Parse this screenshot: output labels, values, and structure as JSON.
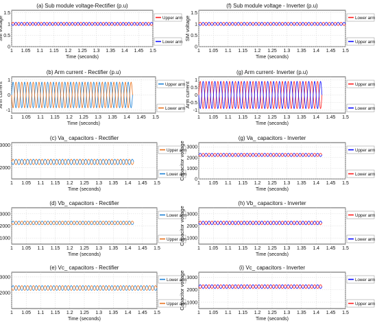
{
  "colors": {
    "blue_right": "#0a0aff",
    "red": "#ff1a1a",
    "orange": "#e8701a",
    "light_blue": "#1a7fd4"
  },
  "chart_data": [
    {
      "type": "line",
      "title": "(a) Sub module voltage-Rectifier (p.u)",
      "xlabel": "Time (seconds)",
      "ylabel": "SM voltage",
      "xlim": [
        1.0,
        1.5
      ],
      "ylim": [
        0,
        1.6
      ],
      "yticks": [
        "0",
        "0.5",
        "1",
        "1.5"
      ],
      "xticks": [
        "1",
        "1.05",
        "1.1",
        "1.15",
        "1.2",
        "1.25",
        "1.3",
        "1.35",
        "1.4",
        "1.45",
        "1.5"
      ],
      "legend": [
        "Upper arm",
        "Lower arm"
      ],
      "legend_placement": "right",
      "series": [
        {
          "name": "Upper arm",
          "color": "#ff1a1a",
          "mean": 1.0,
          "amplitude": 0.07,
          "freq_hz": 50,
          "t_start": 1.0,
          "t_end": 1.5,
          "phase_deg": 0
        },
        {
          "name": "Lower arm",
          "color": "#0a0aff",
          "mean": 1.0,
          "amplitude": 0.07,
          "freq_hz": 50,
          "t_start": 1.0,
          "t_end": 1.5,
          "phase_deg": 180
        }
      ]
    },
    {
      "type": "line",
      "title": "(b) Arm current - Rectifier (p.u)",
      "xlabel": "Time (seconds)",
      "ylabel": "Arm current",
      "xlim": [
        1.0,
        1.5
      ],
      "ylim": [
        -1.2,
        1.2
      ],
      "yticks": [
        "-1",
        "0",
        "1"
      ],
      "xticks": [
        "1",
        "1.05",
        "1.1",
        "1.15",
        "1.2",
        "1.25",
        "1.3",
        "1.35",
        "1.4",
        "1.45",
        "1.5"
      ],
      "legend": [
        "Upper arm",
        "Lower arm"
      ],
      "legend_placement": "right",
      "series": [
        {
          "name": "Upper arm",
          "color": "#1a7fd4",
          "mean": 0,
          "amplitude": 0.85,
          "freq_hz": 50,
          "t_start": 1.0,
          "t_end": 1.42,
          "phase_deg": 0
        },
        {
          "name": "Lower arm",
          "color": "#e8701a",
          "mean": 0,
          "amplitude": 0.85,
          "freq_hz": 50,
          "t_start": 1.0,
          "t_end": 1.42,
          "phase_deg": 180
        }
      ]
    },
    {
      "type": "line",
      "title": "(c) Va_ capacitors - Rectifier",
      "xlabel": "Time (seconds)",
      "ylabel": "Capacitor voltage",
      "xlim": [
        1.0,
        1.5
      ],
      "ylim": [
        1500,
        3100
      ],
      "yticks": [
        "2000",
        "3000"
      ],
      "xticks": [
        "1",
        "1.05",
        "1.1",
        "1.15",
        "1.2",
        "1.25",
        "1.3",
        "1.35",
        "1.4",
        "1.45",
        "1.5"
      ],
      "legend": [
        "Upper arm",
        "Lower arm"
      ],
      "legend_placement": "right",
      "series": [
        {
          "name": "Upper arm",
          "color": "#e8701a",
          "mean": 2250,
          "amplitude": 120,
          "freq_hz": 50,
          "t_start": 1.0,
          "t_end": 1.42,
          "phase_deg": 0
        },
        {
          "name": "Lower arm",
          "color": "#1a7fd4",
          "mean": 2250,
          "amplitude": 120,
          "freq_hz": 50,
          "t_start": 1.0,
          "t_end": 1.42,
          "phase_deg": 180
        }
      ]
    },
    {
      "type": "line",
      "title": "(d) Vb_ capacitors - Rectifier",
      "xlabel": "Time (seconds)",
      "ylabel": "Capacitor voltage",
      "xlim": [
        1.0,
        1.5
      ],
      "ylim": [
        500,
        3500
      ],
      "yticks": [
        "1000",
        "2000",
        "3000"
      ],
      "xticks": [
        "1",
        "1.05",
        "1.1",
        "1.15",
        "1.2",
        "1.25",
        "1.3",
        "1.35",
        "1.4",
        "1.45",
        "1.5"
      ],
      "legend": [
        "Lower arm",
        "Upper arm"
      ],
      "legend_placement": "right",
      "series": [
        {
          "name": "Lower arm",
          "color": "#1a7fd4",
          "mean": 2250,
          "amplitude": 150,
          "freq_hz": 50,
          "t_start": 1.0,
          "t_end": 1.42,
          "phase_deg": 0
        },
        {
          "name": "Upper arm",
          "color": "#e8701a",
          "mean": 2250,
          "amplitude": 150,
          "freq_hz": 50,
          "t_start": 1.0,
          "t_end": 1.42,
          "phase_deg": 180
        }
      ]
    },
    {
      "type": "line",
      "title": "(e) Vc_ capacitors - Rectifier",
      "xlabel": "Time (seconds)",
      "ylabel": "Capacitor voltage",
      "xlim": [
        1.0,
        1.5
      ],
      "ylim": [
        1000,
        3300
      ],
      "yticks": [
        "2000",
        "3000"
      ],
      "xticks": [
        "1",
        "1.05",
        "1.1",
        "1.15",
        "1.2",
        "1.25",
        "1.3",
        "1.35",
        "1.4",
        "1.45",
        "1.5"
      ],
      "legend": [
        "Lower arm",
        "Upper arm"
      ],
      "legend_placement": "right",
      "series": [
        {
          "name": "Lower arm",
          "color": "#1a7fd4",
          "mean": 2300,
          "amplitude": 150,
          "freq_hz": 50,
          "t_start": 1.0,
          "t_end": 1.5,
          "phase_deg": 0
        },
        {
          "name": "Upper arm",
          "color": "#e8701a",
          "mean": 2300,
          "amplitude": 150,
          "freq_hz": 50,
          "t_start": 1.0,
          "t_end": 1.5,
          "phase_deg": 180
        }
      ]
    },
    {
      "type": "line",
      "title": "(f) Sub module voltage - Inverter (p.u)",
      "xlabel": "Time (seconds)",
      "ylabel": "SM voltage",
      "xlim": [
        1.0,
        1.5
      ],
      "ylim": [
        0,
        1.6
      ],
      "yticks": [
        "0",
        "0.5",
        "1",
        "1.5"
      ],
      "xticks": [
        "1",
        "1.05",
        "1.1",
        "1.15",
        "1.2",
        "1.25",
        "1.3",
        "1.35",
        "1.4",
        "1.45",
        "1.5"
      ],
      "legend": [
        "Lower arm",
        "Upper arm"
      ],
      "legend_placement": "right",
      "series": [
        {
          "name": "Lower arm",
          "color": "#ff1a1a",
          "mean": 1.0,
          "amplitude": 0.07,
          "freq_hz": 50,
          "t_start": 1.0,
          "t_end": 1.5,
          "phase_deg": 0
        },
        {
          "name": "Upper arm",
          "color": "#0a0aff",
          "mean": 1.0,
          "amplitude": 0.07,
          "freq_hz": 50,
          "t_start": 1.0,
          "t_end": 1.5,
          "phase_deg": 180
        }
      ]
    },
    {
      "type": "line",
      "title": "(g) Arm current- Inverter (p.u)",
      "xlabel": "Time (seconds)",
      "ylabel": "Arm current",
      "xlim": [
        1.0,
        1.5
      ],
      "ylim": [
        -1.2,
        1.2
      ],
      "yticks": [
        "-1",
        "-0.5",
        "0",
        "0.5",
        "1"
      ],
      "xticks": [
        "1",
        "1.05",
        "1.1",
        "1.15",
        "1.2",
        "1.25",
        "1.3",
        "1.35",
        "1.4",
        "1.45",
        "1.5"
      ],
      "legend": [
        "Upper arm",
        "Lower arm"
      ],
      "legend_placement": "right",
      "series": [
        {
          "name": "Upper arm",
          "color": "#ff1a1a",
          "mean": 0,
          "amplitude": 0.9,
          "freq_hz": 50,
          "t_start": 1.0,
          "t_end": 1.42,
          "phase_deg": 0
        },
        {
          "name": "Lower arm",
          "color": "#0a0aff",
          "mean": 0,
          "amplitude": 0.9,
          "freq_hz": 50,
          "t_start": 1.0,
          "t_end": 1.42,
          "phase_deg": 180
        }
      ]
    },
    {
      "type": "line",
      "title": "(g) Va_ capacitors - Inverter",
      "xlabel": "Time (seconds)",
      "ylabel": "Capacitor voltage",
      "xlim": [
        1.0,
        1.5
      ],
      "ylim": [
        0,
        3400
      ],
      "yticks": [
        "0",
        "1000",
        "2000",
        "3000"
      ],
      "xticks": [
        "1",
        "1.05",
        "1.1",
        "1.15",
        "1.2",
        "1.25",
        "1.3",
        "1.35",
        "1.4",
        "1.45",
        "1.5"
      ],
      "legend": [
        "Upper arm",
        "Lower arm"
      ],
      "legend_placement": "right",
      "series": [
        {
          "name": "Upper arm",
          "color": "#0a0aff",
          "mean": 2250,
          "amplitude": 150,
          "freq_hz": 50,
          "t_start": 1.0,
          "t_end": 1.42,
          "phase_deg": 0
        },
        {
          "name": "Lower arm",
          "color": "#ff1a1a",
          "mean": 2250,
          "amplitude": 150,
          "freq_hz": 50,
          "t_start": 1.0,
          "t_end": 1.42,
          "phase_deg": 180
        }
      ]
    },
    {
      "type": "line",
      "title": "(h) Vb_ capacitors - Inverter",
      "xlabel": "Time (seconds)",
      "ylabel": "Capacitor voltage",
      "xlim": [
        1.0,
        1.5
      ],
      "ylim": [
        500,
        3500
      ],
      "yticks": [
        "1000",
        "2000",
        "3000"
      ],
      "xticks": [
        "1",
        "1.05",
        "1.1",
        "1.15",
        "1.2",
        "1.25",
        "1.3",
        "1.35",
        "1.4",
        "1.45",
        "1.5"
      ],
      "legend": [
        "Upper arm",
        "Lower arm"
      ],
      "legend_placement": "right",
      "series": [
        {
          "name": "Upper arm",
          "color": "#ff1a1a",
          "mean": 2250,
          "amplitude": 150,
          "freq_hz": 50,
          "t_start": 1.0,
          "t_end": 1.42,
          "phase_deg": 0
        },
        {
          "name": "Lower arm",
          "color": "#0a0aff",
          "mean": 2250,
          "amplitude": 150,
          "freq_hz": 50,
          "t_start": 1.0,
          "t_end": 1.42,
          "phase_deg": 180
        }
      ]
    },
    {
      "type": "line",
      "title": "(i) Vc_ capacitors - Inverter",
      "xlabel": "Time (seconds)",
      "ylabel": "Capacitor voltage",
      "xlim": [
        1.0,
        1.5
      ],
      "ylim": [
        500,
        3400
      ],
      "yticks": [
        "1000",
        "2000",
        "3000"
      ],
      "xticks": [
        "1",
        "1.05",
        "1.1",
        "1.15",
        "1.2",
        "1.25",
        "1.3",
        "1.35",
        "1.4",
        "1.45",
        "1.5"
      ],
      "legend": [
        "Lower arm",
        "Upper arm"
      ],
      "legend_placement": "right",
      "series": [
        {
          "name": "Lower arm",
          "color": "#0a0aff",
          "mean": 2250,
          "amplitude": 150,
          "freq_hz": 50,
          "t_start": 1.0,
          "t_end": 1.42,
          "phase_deg": 0
        },
        {
          "name": "Upper arm",
          "color": "#ff1a1a",
          "mean": 2250,
          "amplitude": 150,
          "freq_hz": 50,
          "t_start": 1.0,
          "t_end": 1.42,
          "phase_deg": 180
        }
      ]
    }
  ]
}
